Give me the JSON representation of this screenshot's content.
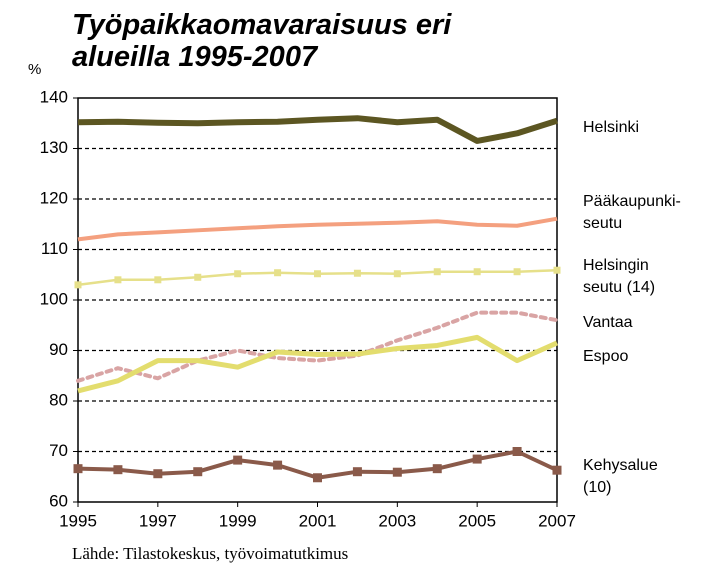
{
  "chart_data": {
    "type": "line",
    "title": "Työpaikkaomavaraisuus eri\nalueilla 1995-2007",
    "y_label": "%",
    "source": "Lähde: Tilastokeskus, työvoimatutkimus",
    "x": [
      1995,
      1996,
      1997,
      1998,
      1999,
      2000,
      2001,
      2002,
      2003,
      2004,
      2005,
      2006,
      2007
    ],
    "xlim": [
      1995,
      2007
    ],
    "xticks": [
      1995,
      1997,
      1999,
      2001,
      2003,
      2005,
      2007
    ],
    "ylim": [
      60,
      140
    ],
    "yticks": [
      60,
      70,
      80,
      90,
      100,
      110,
      120,
      130,
      140
    ],
    "grid": true,
    "series": [
      {
        "name": "Helsinki",
        "color": "#5c5622",
        "values": [
          135.2,
          135.3,
          135.1,
          135.0,
          135.2,
          135.3,
          135.7,
          136.0,
          135.2,
          135.7,
          131.5,
          133.0,
          135.5
        ]
      },
      {
        "name": "Pääkaupunki-\nseutu",
        "color": "#f4a07f",
        "values": [
          112.0,
          113.0,
          113.4,
          113.8,
          114.2,
          114.6,
          114.9,
          115.1,
          115.3,
          115.6,
          114.9,
          114.7,
          116.1
        ]
      },
      {
        "name": "Helsingin\nseutu (14)",
        "color": "#e6e08a",
        "values": [
          103.0,
          104.0,
          104.0,
          104.5,
          105.2,
          105.4,
          105.2,
          105.3,
          105.2,
          105.6,
          105.6,
          105.6,
          105.9
        ]
      },
      {
        "name": "Vantaa",
        "color": "#d9a4a4",
        "values": [
          84.0,
          86.5,
          84.5,
          88.0,
          90.0,
          88.5,
          88.0,
          89.0,
          92.0,
          94.5,
          97.5,
          97.5,
          96.0
        ]
      },
      {
        "name": "Espoo",
        "color": "#e3dd6e",
        "values": [
          82.0,
          84.0,
          88.0,
          88.0,
          86.7,
          89.7,
          89.2,
          89.3,
          90.4,
          91.0,
          92.6,
          88.0,
          91.5
        ]
      },
      {
        "name": "Kehysalue\n(10)",
        "color": "#8a5a4a",
        "values": [
          66.6,
          66.4,
          65.6,
          66.0,
          68.3,
          67.3,
          64.8,
          66.0,
          65.9,
          66.6,
          68.5,
          70.0,
          66.3
        ]
      }
    ]
  }
}
